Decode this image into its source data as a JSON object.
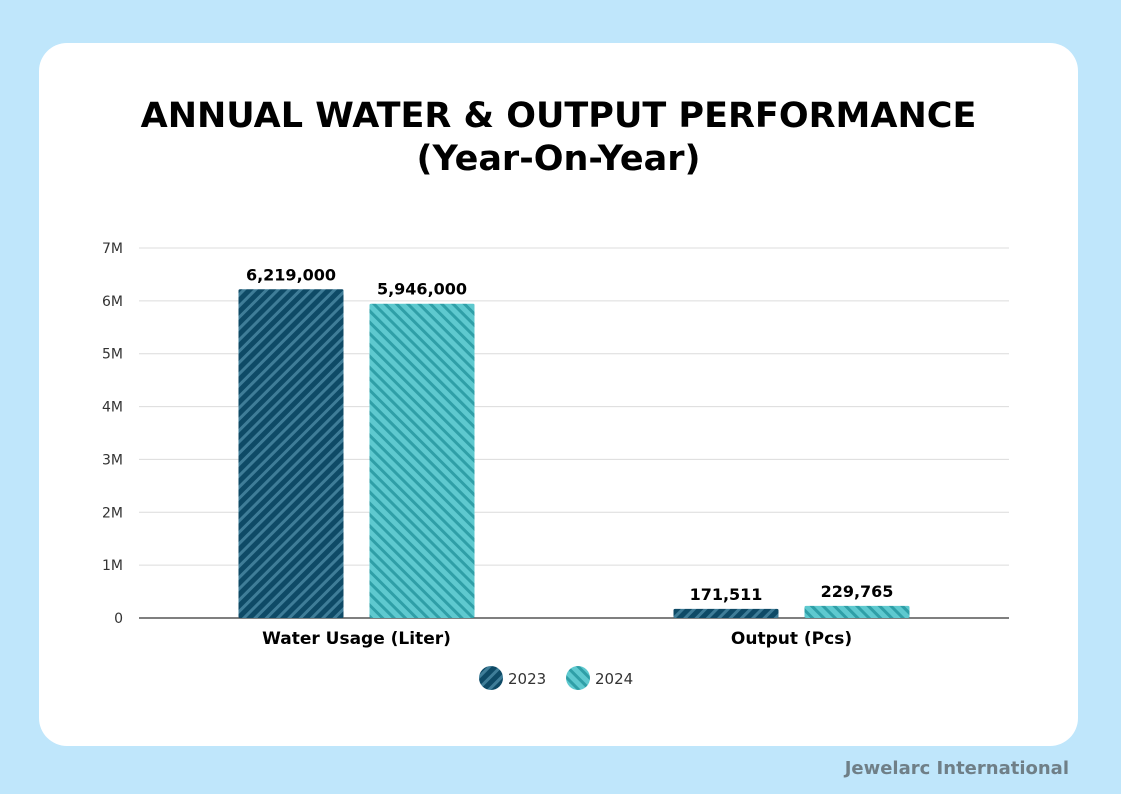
{
  "page": {
    "title_line1": "ANNUAL WATER & OUTPUT PERFORMANCE",
    "title_line2": "(Year-On-Year)",
    "footer": "Jewelarc International"
  },
  "colors": {
    "background": "#bfe6fb",
    "series_2023": "#0e4a66",
    "series_2024": "#5ec9cf"
  },
  "chart_data": {
    "type": "bar",
    "title": "ANNUAL WATER & OUTPUT PERFORMANCE (Year-On-Year)",
    "categories": [
      "Water Usage (Liter)",
      "Output (Pcs)"
    ],
    "series": [
      {
        "name": "2023",
        "values": [
          6219000,
          171511
        ],
        "labels": [
          "6,219,000",
          "171,511"
        ],
        "color": "#0e4a66"
      },
      {
        "name": "2024",
        "values": [
          5946000,
          229765
        ],
        "labels": [
          "5,946,000",
          "229,765"
        ],
        "color": "#5ec9cf"
      }
    ],
    "ylim": [
      0,
      7000000
    ],
    "yticks": [
      0,
      1000000,
      2000000,
      3000000,
      4000000,
      5000000,
      6000000,
      7000000
    ],
    "ytick_labels": [
      "0",
      "1M",
      "2M",
      "3M",
      "4M",
      "5M",
      "6M",
      "7M"
    ],
    "grid": true,
    "legend_position": "bottom-center",
    "xlabel": "",
    "ylabel": ""
  }
}
